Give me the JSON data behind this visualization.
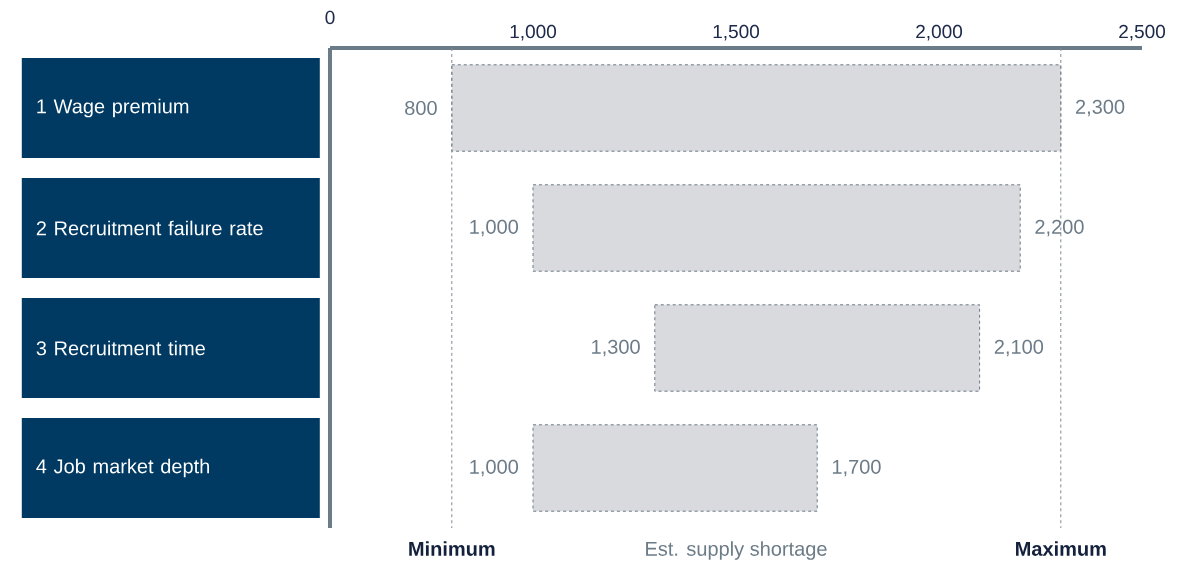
{
  "chart_data": {
    "type": "bar",
    "orientation": "horizontal",
    "categories": [
      "1 Wage premium",
      "2 Recruitment failure rate",
      "3 Recruitment time",
      "4 Job market depth"
    ],
    "base": [
      800,
      1000,
      1300,
      1000
    ],
    "values": [
      1500,
      1200,
      800,
      700
    ],
    "value_labels": [
      "2,300",
      "2,200",
      "2,100",
      "1,700"
    ],
    "color": "#d9dadd",
    "xlim": [
      500,
      2500
    ],
    "xticks": [
      {
        "value": 500,
        "label": null
      },
      {
        "value": 1000,
        "label": "1,000"
      },
      {
        "value": 1500,
        "label": "1,500"
      },
      {
        "value": 2000,
        "label": "2,000"
      },
      {
        "value": 2500,
        "label": "2,500"
      }
    ],
    "xlabel": "Est. supply shortage",
    "ref_lines": [
      {
        "axis": "x",
        "value": 800,
        "label": "Minimum",
        "color": "#7f8a95",
        "line_style": "dashed"
      },
      {
        "axis": "x",
        "value": 2300,
        "label": "Maximum",
        "color": "#7f8a95",
        "line_style": "dashed"
      }
    ],
    "annotations": [
      "0",
      {
        "text": "800",
        "x": 800,
        "y": "1 Wage premium"
      },
      {
        "text": "1,000",
        "x": 1000,
        "y": "2 Recruitment failure rate"
      },
      {
        "text": "1,300",
        "x": 1300,
        "y": "3 Recruitment time"
      },
      {
        "text": "1,000",
        "x": 1000,
        "y": "4 Job market depth"
      }
    ]
  }
}
